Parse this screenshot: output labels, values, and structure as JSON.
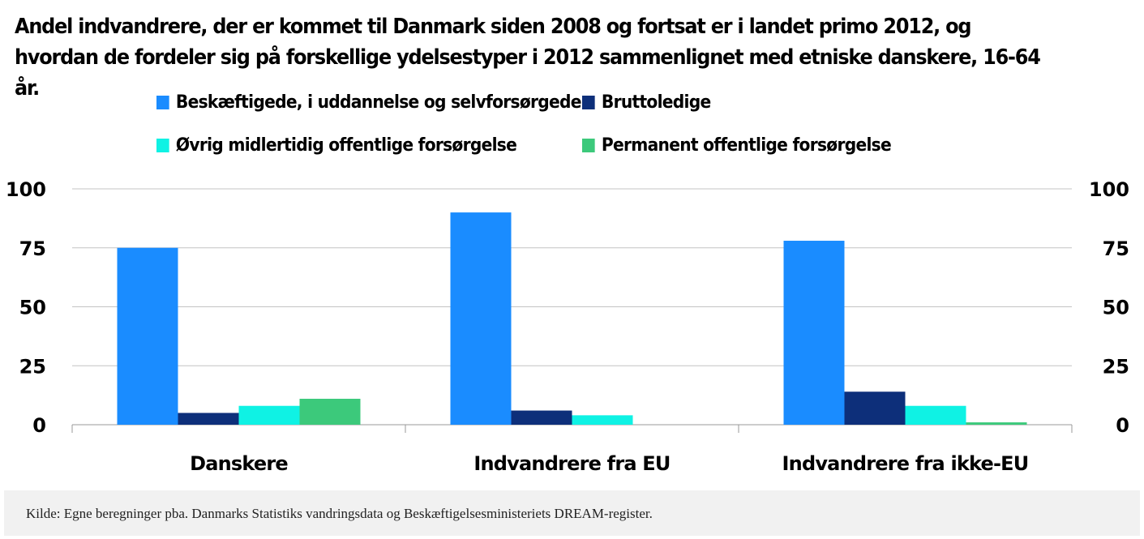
{
  "title": "Andel indvandrere, der er kommet til Danmark siden 2008 og fortsat er i landet primo 2012, og hvordan de fordeler sig på forskellige ydelsestyper i 2012 sammenlignet med etniske danskere, 16-64 år.",
  "source": "Kilde: Egne beregninger pba. Danmarks Statistiks vandringsdata og Beskæftigelsesministeriets DREAM-register.",
  "chart_data": {
    "type": "bar",
    "categories": [
      "Danskere",
      "Indvandrere fra EU",
      "Indvandrere fra ikke-EU"
    ],
    "series": [
      {
        "name": "Beskæftigede, i uddannelse og selvforsørgede",
        "color": "#1a8cff",
        "values": [
          75,
          90,
          78
        ]
      },
      {
        "name": "Bruttoledige",
        "color": "#0d2f7a",
        "values": [
          5,
          6,
          14
        ]
      },
      {
        "name": "Øvrig midlertidig offentlige forsørgelse",
        "color": "#0ff2e4",
        "values": [
          8,
          4,
          8
        ]
      },
      {
        "name": "Permanent offentlige forsørgelse",
        "color": "#3cc97b",
        "values": [
          11,
          0,
          1
        ]
      }
    ],
    "ylim": [
      0,
      100
    ],
    "yticks": [
      0,
      25,
      50,
      75,
      100
    ],
    "grid": true,
    "legend": "top",
    "dual_y_axis": true
  }
}
